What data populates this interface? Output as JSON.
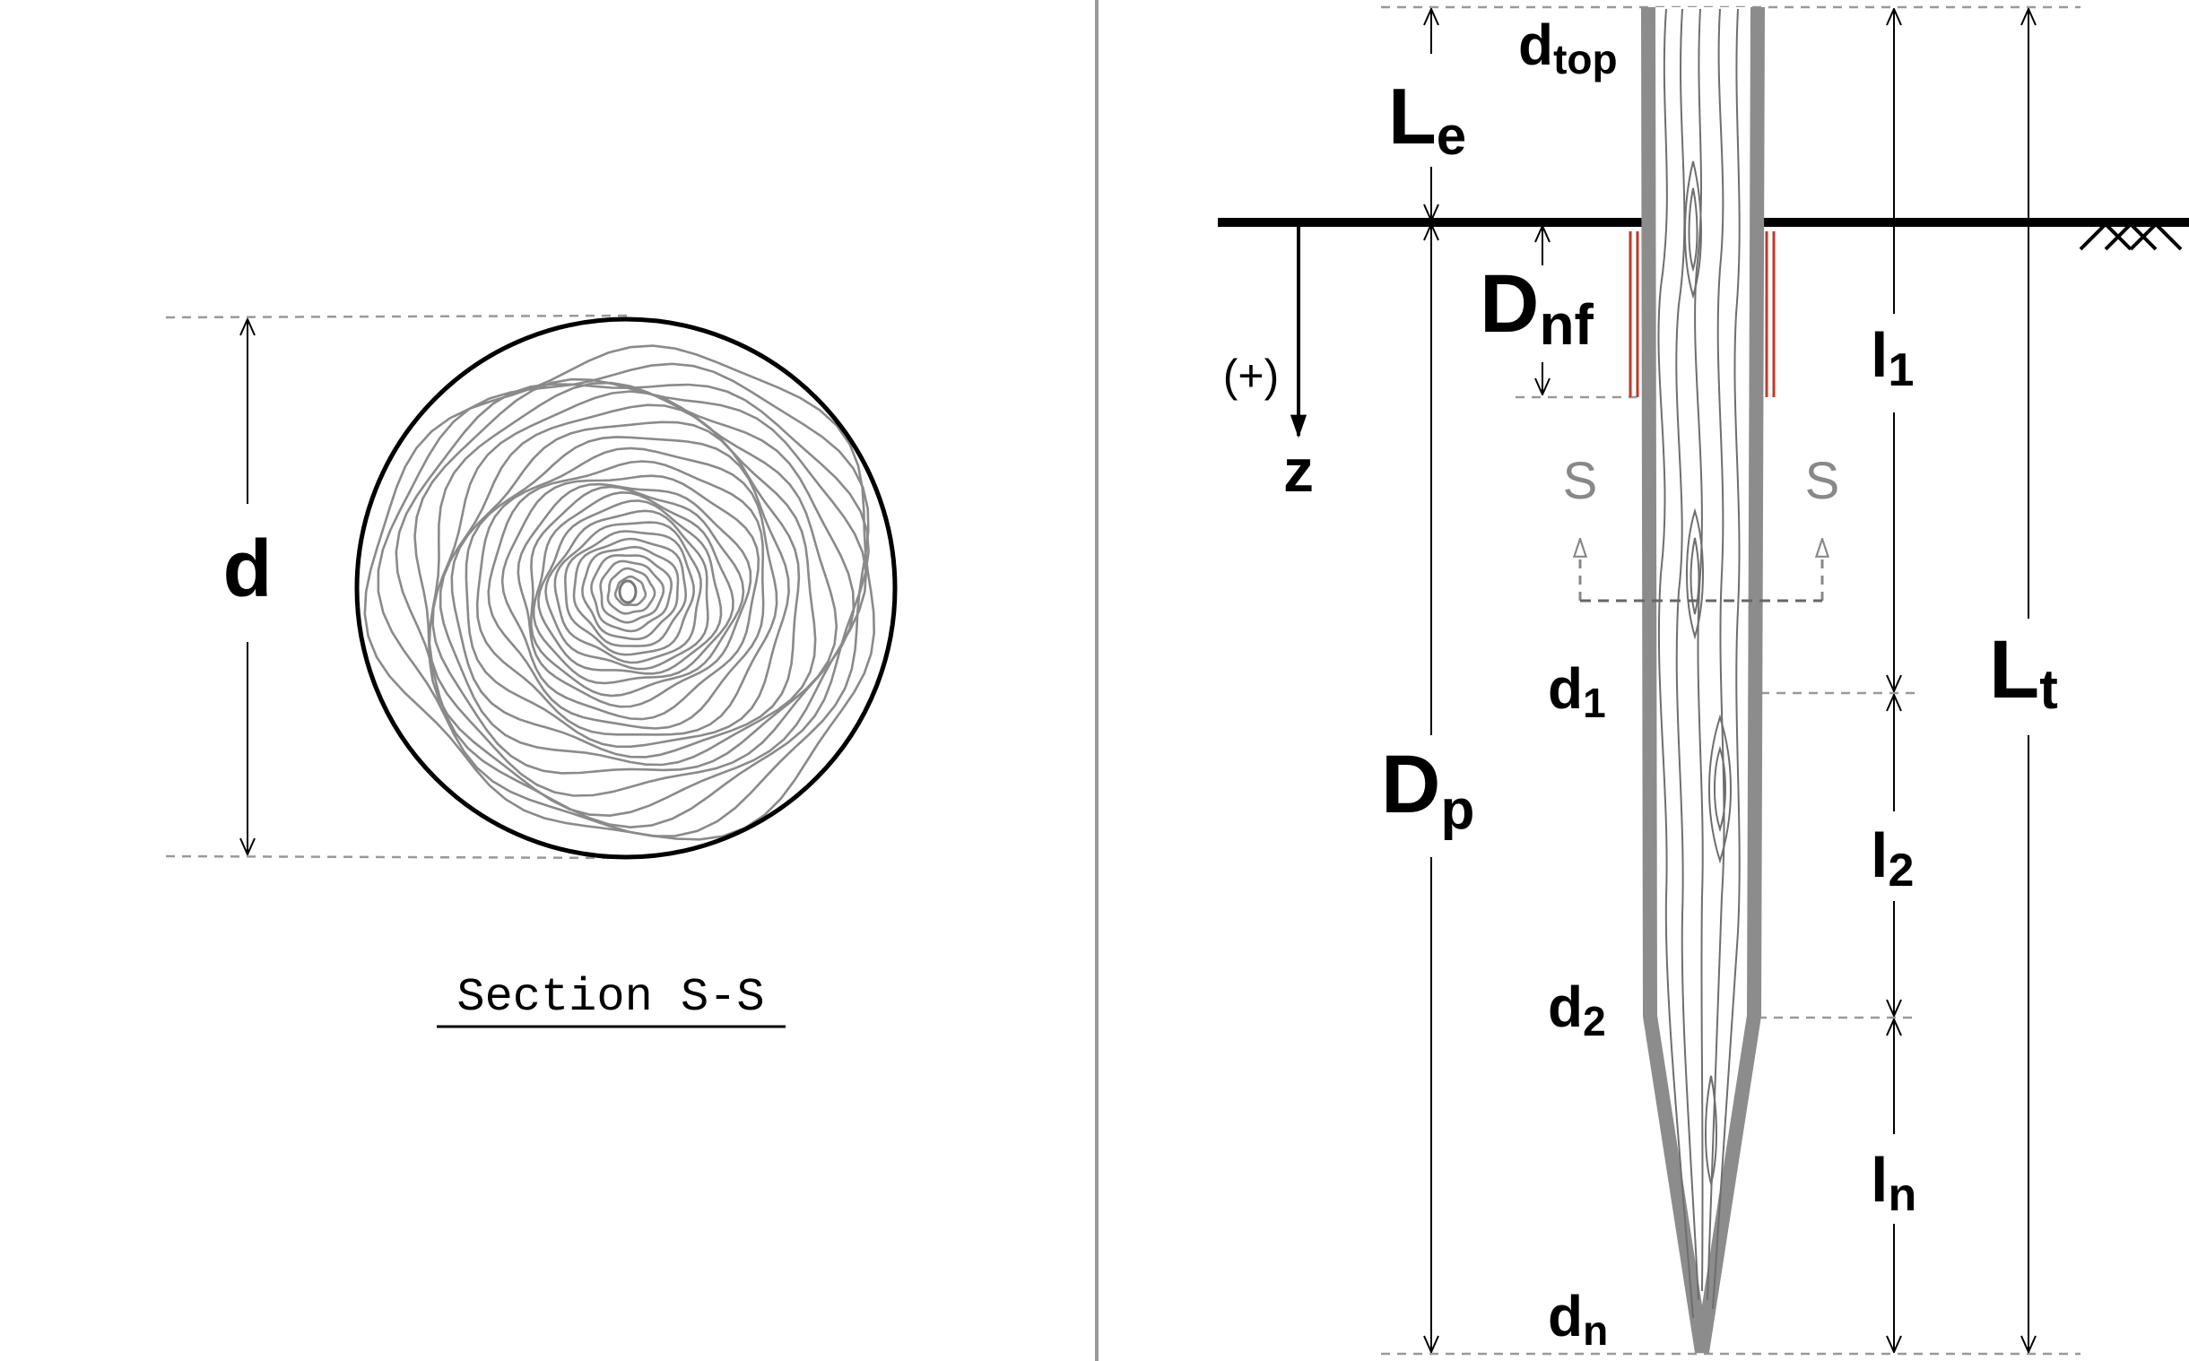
{
  "section": {
    "d": "d",
    "title": "Section S-S"
  },
  "pile": {
    "d_top": "d",
    "d_top_sub": "top",
    "L_e": "L",
    "L_e_sub": "e",
    "D_nf": "D",
    "D_nf_sub": "nf",
    "D_p": "D",
    "D_p_sub": "p",
    "L_t": "L",
    "L_t_sub": "t",
    "l_1": "l",
    "l_1_sub": "1",
    "l_2": "l",
    "l_2_sub": "2",
    "l_n": "l",
    "l_n_sub": "n",
    "d_1": "d",
    "d_1_sub": "1",
    "d_2": "d",
    "d_2_sub": "2",
    "d_n": "d",
    "d_n_sub": "n",
    "plus": "(+)",
    "z": "z",
    "s_left": "S",
    "s_right": "S"
  },
  "colors": {
    "pile_outline": "#8c8c8c",
    "negative_friction": "#c0392b",
    "ground": "#000000",
    "dashed": "#999999"
  }
}
